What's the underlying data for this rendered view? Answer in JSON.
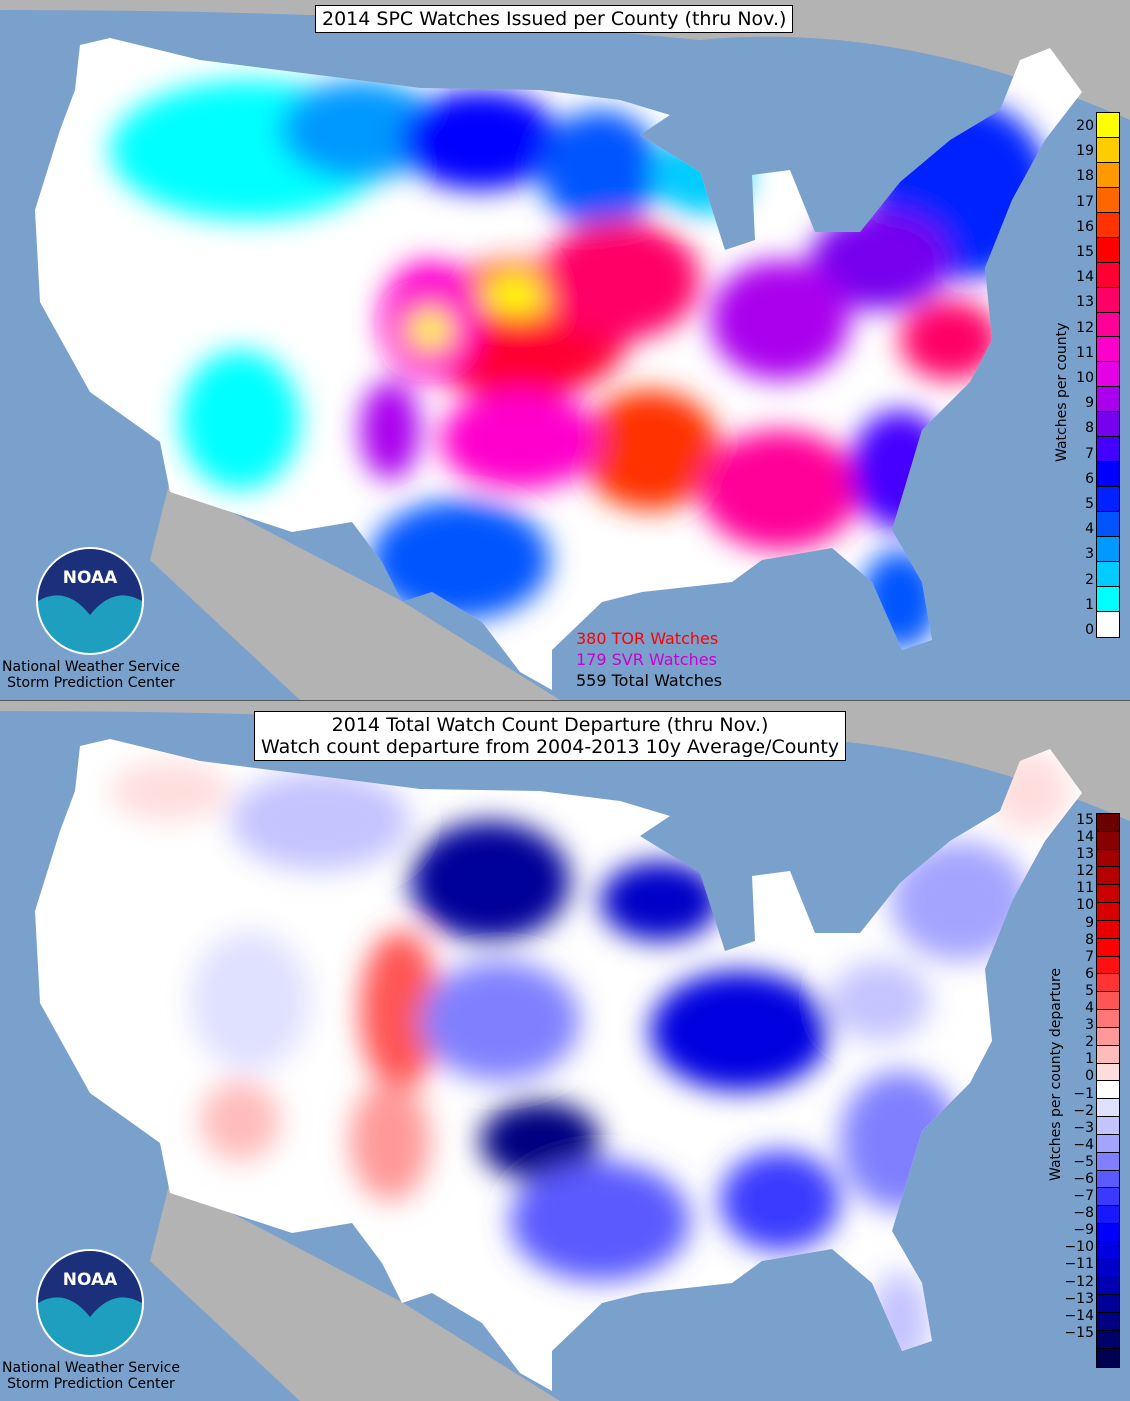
{
  "top_panel": {
    "title": "2014 SPC Watches Issued per County (thru Nov.)",
    "colorbar_label": "Watches per county",
    "colorbar_ticks": [
      "20",
      "19",
      "18",
      "17",
      "16",
      "15",
      "14",
      "13",
      "12",
      "11",
      "10",
      "9",
      "8",
      "7",
      "6",
      "5",
      "4",
      "3",
      "2",
      "1",
      "0"
    ],
    "colorbar_colors": [
      "#ffff00",
      "#ffcc00",
      "#ff9900",
      "#ff6600",
      "#ff3300",
      "#ff0000",
      "#ff0033",
      "#ff0066",
      "#ff0099",
      "#ff00cc",
      "#e600e6",
      "#aa00ee",
      "#7700ee",
      "#4400ff",
      "#0000ff",
      "#0022ff",
      "#0055ff",
      "#0099ff",
      "#00ccff",
      "#00ffff",
      "#ffffff"
    ],
    "tor_watches": "380 TOR Watches",
    "svr_watches": "179 SVR Watches",
    "total_watches": "559 Total Watches",
    "tor_color": "#ff0000",
    "svr_color": "#cc00cc"
  },
  "bottom_panel": {
    "title_line1": "2014 Total Watch Count Departure (thru Nov.)",
    "title_line2": "Watch count departure from 2004-2013 10y Average/County",
    "colorbar_label": "Watches per county departure",
    "colorbar_ticks": [
      "15",
      "14",
      "13",
      "12",
      "11",
      "10",
      "9",
      "8",
      "7",
      "6",
      "5",
      "4",
      "3",
      "2",
      "1",
      "0",
      "−1",
      "−2",
      "−3",
      "−4",
      "−5",
      "−6",
      "−7",
      "−8",
      "−9",
      "−10",
      "−11",
      "−12",
      "−13",
      "−14",
      "−15"
    ],
    "colorbar_colors": [
      "#6b0000",
      "#880000",
      "#a00000",
      "#b40000",
      "#c80000",
      "#d80000",
      "#e80000",
      "#ff0000",
      "#ff1111",
      "#ff3333",
      "#ff5555",
      "#ff7777",
      "#ff9999",
      "#ffbbbb",
      "#ffdddd",
      "#ffffff",
      "#e0e0ff",
      "#c4c4ff",
      "#a4a4ff",
      "#8080ff",
      "#5a5aff",
      "#3a3aff",
      "#1818ff",
      "#0000ff",
      "#0000e0",
      "#0000c8",
      "#0000b0",
      "#00009a",
      "#000080",
      "#00006a",
      "#000050"
    ]
  },
  "branding": {
    "logo_text": "NOAA",
    "nws_line1": "National Weather Service",
    "nws_line2": "Storm Prediction Center"
  }
}
